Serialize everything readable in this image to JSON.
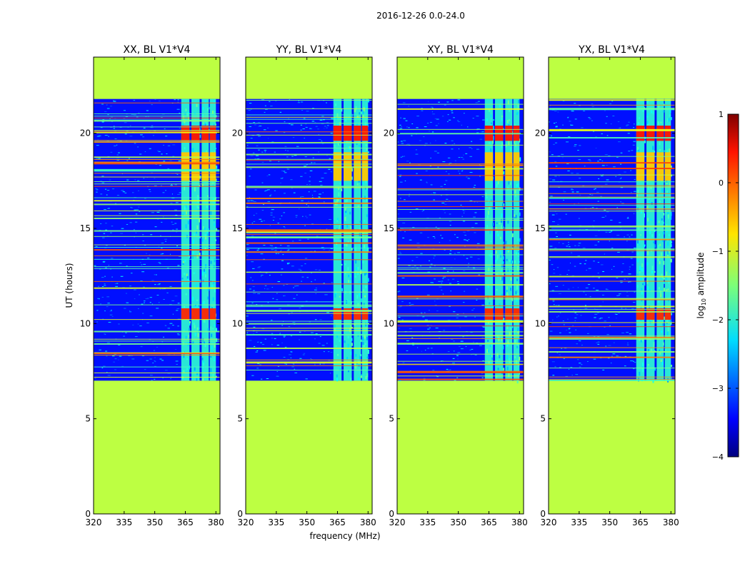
{
  "chart_data": {
    "type": "heatmap",
    "suptitle": "2016-12-26 0.0-24.0",
    "xlabel": "frequency (MHz)",
    "ylabel": "UT (hours)",
    "xlim": [
      320,
      382
    ],
    "ylim": [
      0,
      24
    ],
    "xticks": [
      320,
      335,
      350,
      365,
      380
    ],
    "yticks": [
      0,
      5,
      10,
      15,
      20
    ],
    "observed_ut_range": [
      7.0,
      21.8
    ],
    "masked_value_log10": -1.2,
    "rfi_band_mhz": [
      362,
      380
    ],
    "strong_rfi_blocks": [
      {
        "ut": [
          19.6,
          20.4
        ],
        "freq_mhz": [
          363,
          380
        ],
        "log10_amplitude": 0.3
      },
      {
        "ut": [
          17.5,
          19.0
        ],
        "freq_mhz": [
          363,
          380
        ],
        "log10_amplitude": -0.6
      },
      {
        "ut": [
          10.2,
          10.8
        ],
        "freq_mhz": [
          363,
          380
        ],
        "log10_amplitude": 0.2
      }
    ],
    "background_log10_amplitude": -3.3,
    "panels": [
      {
        "title": "XX, BL V1*V4"
      },
      {
        "title": "YY, BL V1*V4"
      },
      {
        "title": "XY, BL V1*V4"
      },
      {
        "title": "YX, BL V1*V4"
      }
    ],
    "colorbar": {
      "label": "log",
      "label_sub": "10",
      "label_rest": " amplitude",
      "range": [
        -4,
        1
      ],
      "ticks": [
        "1",
        "0",
        "−1",
        "−2",
        "−3",
        "−4"
      ],
      "colormap": "jet"
    }
  }
}
